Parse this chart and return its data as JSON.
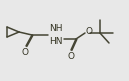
{
  "bg_color": "#e8e8e8",
  "line_color": "#444433",
  "text_color": "#333322",
  "line_width": 1.1,
  "font_size": 6.5,
  "fig_width": 1.29,
  "fig_height": 0.81,
  "dpi": 100,
  "xlim": [
    0,
    129
  ],
  "ylim": [
    0,
    81
  ]
}
